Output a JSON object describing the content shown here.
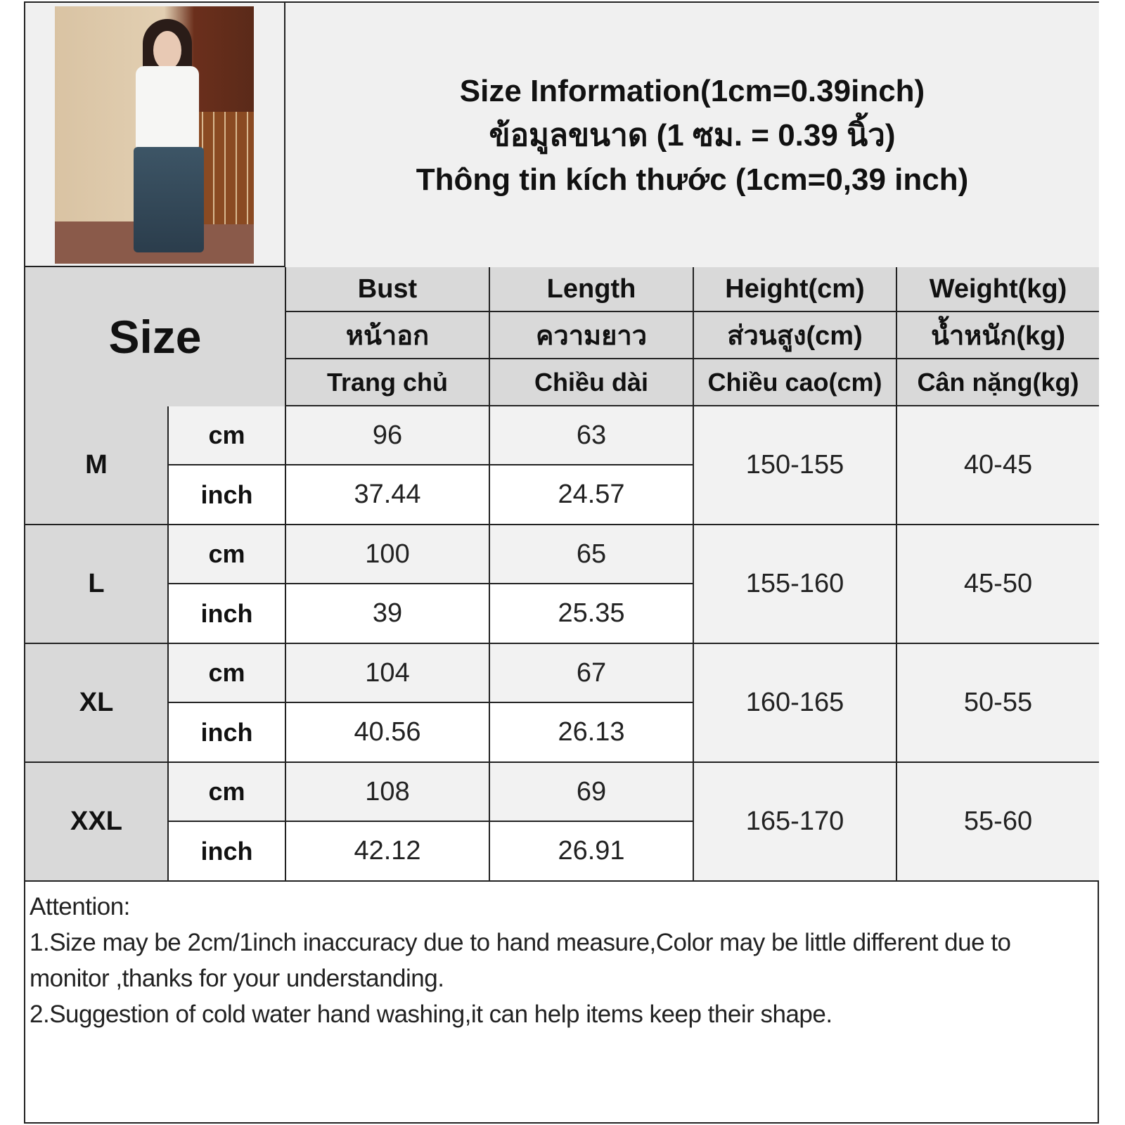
{
  "title": {
    "en": "Size Information(1cm=0.39inch)",
    "th": "ข้อมูลขนาด (1 ซม. = 0.39 นิ้ว)",
    "vi": "Thông tin kích thước (1cm=0,39 inch)"
  },
  "table": {
    "size_label": "Size",
    "columns": [
      {
        "en": "Bust",
        "th": "หน้าอก",
        "vi": "Trang chủ"
      },
      {
        "en": "Length",
        "th": "ความยาว",
        "vi": "Chiều dài"
      },
      {
        "en": "Height(cm)",
        "th": "ส่วนสูง(cm)",
        "vi": "Chiều cao(cm)"
      },
      {
        "en": "Weight(kg)",
        "th": "น้ำหนัก(kg)",
        "vi": "Cân nặng(kg)"
      }
    ],
    "rows": [
      {
        "size": "M",
        "cm_label": "cm",
        "inch_label": "inch",
        "bust_cm": "96",
        "length_cm": "63",
        "bust_inch": "37.44",
        "length_inch": "24.57",
        "height": "150-155",
        "weight": "40-45"
      },
      {
        "size": "L",
        "cm_label": "cm",
        "inch_label": "inch",
        "bust_cm": "100",
        "length_cm": "65",
        "bust_inch": "39",
        "length_inch": "25.35",
        "height": "155-160",
        "weight": "45-50"
      },
      {
        "size": "XL",
        "cm_label": "cm",
        "inch_label": "inch",
        "bust_cm": "104",
        "length_cm": "67",
        "bust_inch": "40.56",
        "length_inch": "26.13",
        "height": "160-165",
        "weight": "50-55"
      },
      {
        "size": "XXL",
        "cm_label": "cm",
        "inch_label": "inch",
        "bust_cm": "108",
        "length_cm": "69",
        "bust_inch": "42.12",
        "length_inch": "26.91",
        "height": "165-170",
        "weight": "55-60"
      }
    ]
  },
  "notes": {
    "heading": "Attention:",
    "line1": "1.Size may be 2cm/1inch inaccuracy due to hand measure,Color may be little different due to monitor ,thanks for your understanding.",
    "line2": "2.Suggestion of cold water hand washing,it can help items keep their shape."
  }
}
